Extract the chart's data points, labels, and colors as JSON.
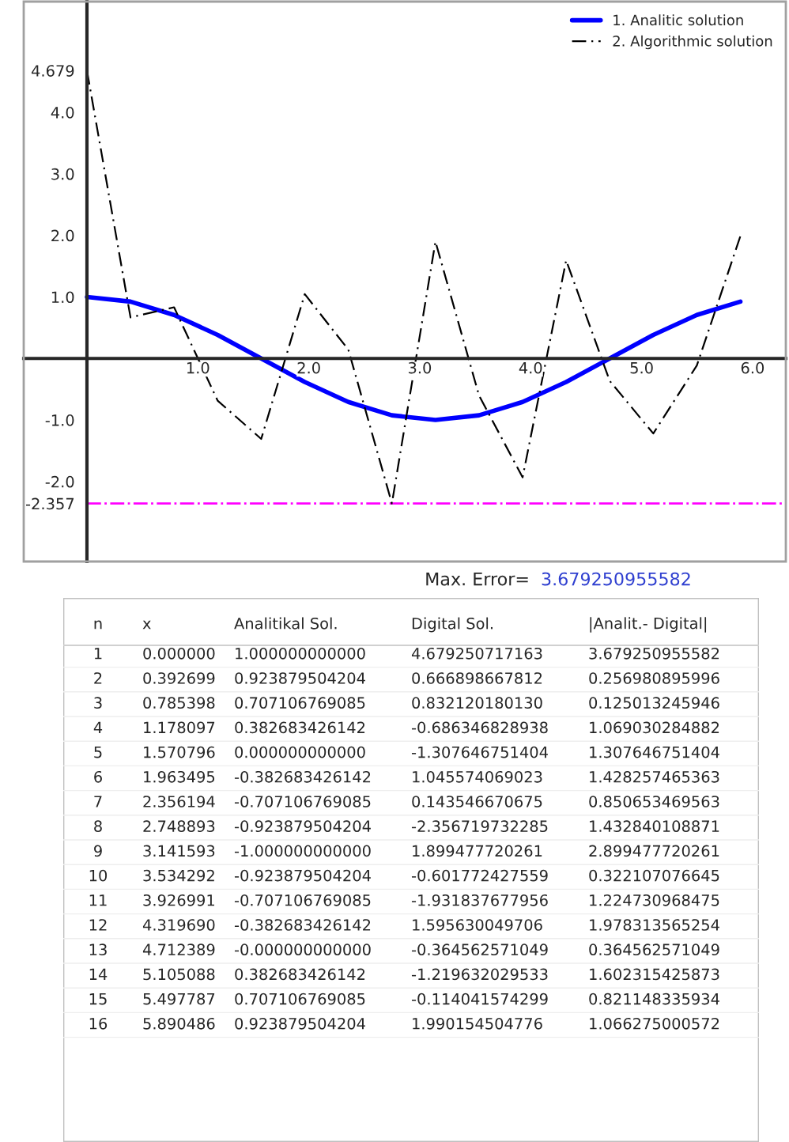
{
  "chart_data": {
    "type": "line",
    "x": [
      0.0,
      0.392699,
      0.785398,
      1.178097,
      1.570796,
      1.963495,
      2.356194,
      2.748893,
      3.141593,
      3.534292,
      3.926991,
      4.31969,
      4.712389,
      5.105088,
      5.497787,
      5.890486
    ],
    "series": [
      {
        "name": "1. Analitic solution",
        "color": "#0000ff",
        "line_style": "solid",
        "values": [
          1.0,
          0.923879504204,
          0.707106769085,
          0.382683426142,
          0.0,
          -0.382683426142,
          -0.707106769085,
          -0.923879504204,
          -1.0,
          -0.923879504204,
          -0.707106769085,
          -0.382683426142,
          -0.0,
          0.382683426142,
          0.707106769085,
          0.923879504204
        ]
      },
      {
        "name": "2. Algorithmic solution",
        "color": "#000000",
        "line_style": "dashed",
        "values": [
          4.679250717163,
          0.666898667812,
          0.83212018013,
          -0.686346828938,
          -1.307646751404,
          1.045574069023,
          0.143546670675,
          -2.356719732285,
          1.899477720261,
          -0.601772427559,
          -1.931837677956,
          1.595630049706,
          -0.364562571049,
          -1.219632029533,
          -0.114041574299,
          1.990154504776
        ]
      }
    ],
    "xlim": [
      -0.57,
      6.3
    ],
    "ylim": [
      -3.3,
      5.8
    ],
    "xticks": [
      {
        "value": 1,
        "label": "1.0"
      },
      {
        "value": 2,
        "label": "2.0"
      },
      {
        "value": 3,
        "label": "3.0"
      },
      {
        "value": 4,
        "label": "4.0"
      },
      {
        "value": 5,
        "label": "5.0"
      },
      {
        "value": 6,
        "label": "6.0"
      }
    ],
    "yticks": [
      -2.357,
      {
        "value": -2,
        "label": "-2.0"
      },
      {
        "value": -1,
        "label": "-1.0"
      },
      {
        "value": 1,
        "label": "1.0"
      },
      {
        "value": 2,
        "label": "2.0"
      },
      {
        "value": 3,
        "label": "3.0"
      },
      {
        "value": 4,
        "label": "4.0"
      },
      4.679
    ],
    "ref_lines": [
      {
        "axis": "y",
        "value": -2.357,
        "color": "#ff00ff",
        "line_style": "dashdot"
      }
    ],
    "legend": "top right",
    "grid": false,
    "annotations": [
      "Max. Error=",
      "3.679250955582",
      "n\tx\tAnalitikal Sol.\tDigital Sol.\t|Analit.- Digital|",
      "1\t0.000000\t1.000000000000\t4.679250717163\t3.679250955582",
      "2\t0.392699\t0.923879504204\t0.666898667812\t0.256980895996",
      "3\t0.785398\t0.707106769085\t0.832120180130\t0.125013245946",
      "4\t1.178097\t0.382683426142\t-0.686346828938\t1.069030284882",
      "5\t1.570796\t0.000000000000\t-1.307646751404\t1.307646751404",
      "6\t1.963495\t-0.382683426142\t1.045574069023\t1.428257465363",
      "7\t2.356194\t-0.707106769085\t0.143546670675\t0.850653469563",
      "8\t2.748893\t-0.923879504204\t-2.356719732285\t1.432840108871",
      "9\t3.141593\t-1.000000000000\t1.899477720261\t2.899477720261",
      "10\t3.534292\t-0.923879504204\t-0.601772427559\t0.322107076645",
      "11\t3.926991\t-0.707106769085\t-1.931837677956\t1.224730968475",
      "12\t4.319690\t-0.382683426142\t1.595630049706\t1.978313565254",
      "13\t4.712389\t-0.000000000000\t-0.364562571049\t0.364562571049",
      "14\t5.105088\t0.382683426142\t-1.219632029533\t1.602315425873",
      "15\t5.497787\t0.707106769085\t-0.114041574299\t0.821148335934",
      "16\t5.890486\t0.923879504204\t1.990154504776\t1.066275000572"
    ]
  }
}
